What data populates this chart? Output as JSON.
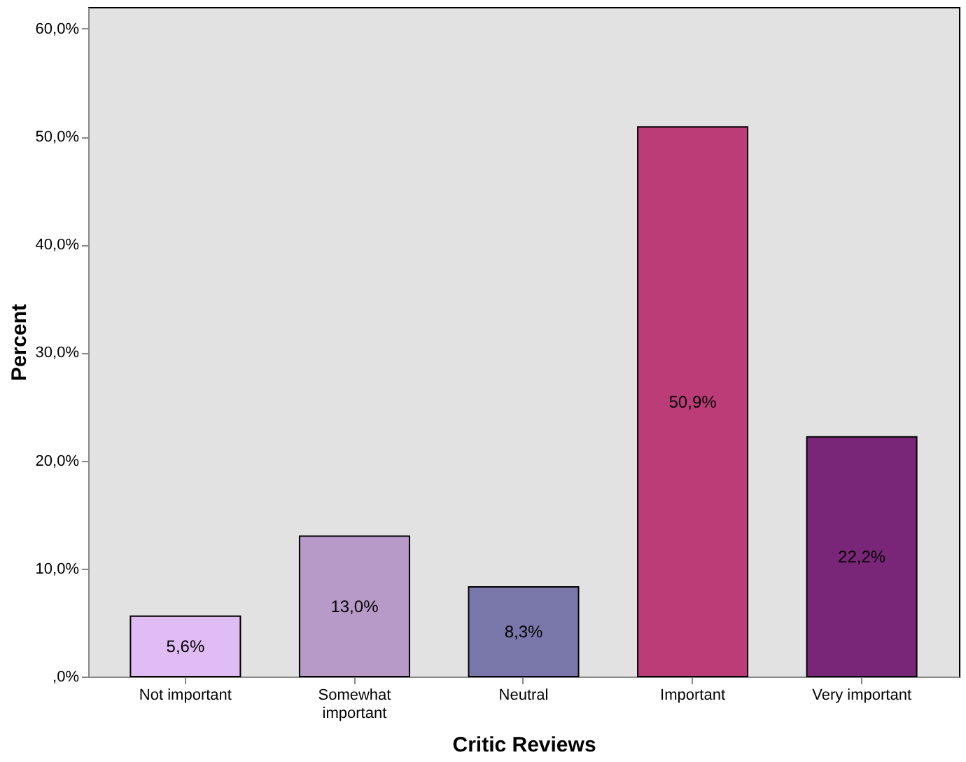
{
  "chart_data": {
    "type": "bar",
    "xlabel": "Critic Reviews",
    "ylabel": "Percent",
    "categories": [
      "Not important",
      "Somewhat important",
      "Neutral",
      "Important",
      "Very important"
    ],
    "values": [
      5.6,
      13.0,
      8.3,
      50.9,
      22.2
    ],
    "colors": [
      "#e0bcf4",
      "#b89ac8",
      "#7a78aa",
      "#bc3c78",
      "#7a2678"
    ],
    "value_labels": [
      "5,6%",
      "13,0%",
      "8,3%",
      "50,9%",
      "22,2%"
    ],
    "ylim": [
      0,
      62
    ],
    "yticks": [
      {
        "value": 0,
        "label": ",0%"
      },
      {
        "value": 10,
        "label": "10,0%"
      },
      {
        "value": 20,
        "label": "20,0%"
      },
      {
        "value": 30,
        "label": "30,0%"
      },
      {
        "value": 40,
        "label": "40,0%"
      },
      {
        "value": 50,
        "label": "50,0%"
      },
      {
        "value": 60,
        "label": "60,0%"
      }
    ],
    "grid": false
  }
}
